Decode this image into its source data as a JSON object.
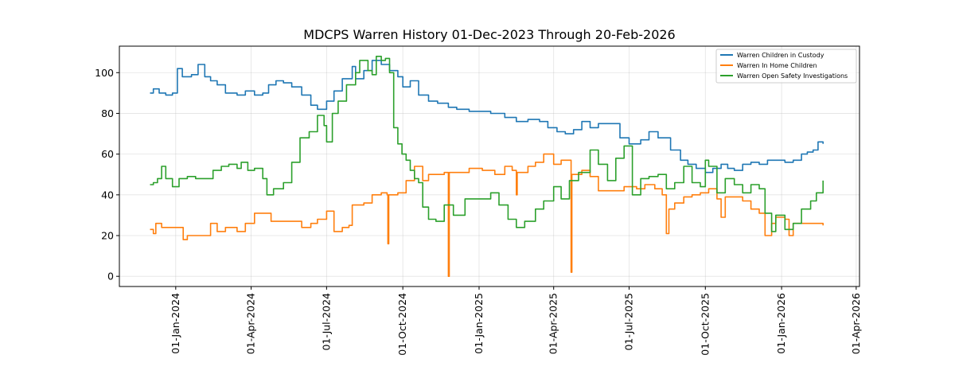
{
  "chart_data": {
    "type": "line",
    "title": "MDCPS Warren History 01-Dec-2023 Through 20-Feb-2026",
    "xlabel": "",
    "ylabel": "",
    "xlim": [
      "2023-10-25",
      "2026-04-05"
    ],
    "ylim": [
      -5,
      113
    ],
    "grid": true,
    "legend_position": "top-right",
    "x_ticks": [
      "2024-01-01",
      "2024-04-01",
      "2024-07-01",
      "2024-10-01",
      "2025-01-01",
      "2025-04-01",
      "2025-07-01",
      "2025-10-01",
      "2026-01-01",
      "2026-04-01"
    ],
    "x_tick_labels": [
      "01-Jan-2024",
      "01-Apr-2024",
      "01-Jul-2024",
      "01-Oct-2024",
      "01-Jan-2025",
      "01-Apr-2025",
      "01-Jul-2025",
      "01-Oct-2025",
      "01-Jan-2026",
      "01-Apr-2026"
    ],
    "y_ticks": [
      0,
      20,
      40,
      60,
      80,
      100
    ],
    "y_tick_labels": [
      "0",
      "20",
      "40",
      "60",
      "80",
      "100"
    ],
    "series": [
      {
        "name": "Warren Children in Custody",
        "color": "#1f77b4",
        "points": [
          [
            "2023-12-01",
            90
          ],
          [
            "2023-12-05",
            92
          ],
          [
            "2023-12-12",
            90
          ],
          [
            "2023-12-20",
            89
          ],
          [
            "2023-12-28",
            90
          ],
          [
            "2024-01-03",
            102
          ],
          [
            "2024-01-09",
            98
          ],
          [
            "2024-01-20",
            99
          ],
          [
            "2024-01-28",
            104
          ],
          [
            "2024-02-05",
            98
          ],
          [
            "2024-02-12",
            96
          ],
          [
            "2024-02-20",
            94
          ],
          [
            "2024-03-01",
            90
          ],
          [
            "2024-03-15",
            89
          ],
          [
            "2024-03-25",
            91
          ],
          [
            "2024-04-05",
            89
          ],
          [
            "2024-04-15",
            90
          ],
          [
            "2024-04-22",
            94
          ],
          [
            "2024-05-01",
            96
          ],
          [
            "2024-05-10",
            95
          ],
          [
            "2024-05-20",
            93
          ],
          [
            "2024-06-01",
            89
          ],
          [
            "2024-06-12",
            84
          ],
          [
            "2024-06-20",
            82
          ],
          [
            "2024-07-01",
            86
          ],
          [
            "2024-07-10",
            91
          ],
          [
            "2024-07-20",
            97
          ],
          [
            "2024-08-01",
            103
          ],
          [
            "2024-08-05",
            97
          ],
          [
            "2024-08-15",
            101
          ],
          [
            "2024-08-25",
            106
          ],
          [
            "2024-09-05",
            104
          ],
          [
            "2024-09-15",
            101
          ],
          [
            "2024-09-25",
            98
          ],
          [
            "2024-10-01",
            93
          ],
          [
            "2024-10-10",
            96
          ],
          [
            "2024-10-20",
            89
          ],
          [
            "2024-11-01",
            86
          ],
          [
            "2024-11-12",
            85
          ],
          [
            "2024-11-25",
            83
          ],
          [
            "2024-12-05",
            82
          ],
          [
            "2024-12-20",
            81
          ],
          [
            "2025-01-05",
            81
          ],
          [
            "2025-01-15",
            80
          ],
          [
            "2025-02-01",
            78
          ],
          [
            "2025-02-15",
            76
          ],
          [
            "2025-03-01",
            77
          ],
          [
            "2025-03-15",
            76
          ],
          [
            "2025-03-25",
            73
          ],
          [
            "2025-04-05",
            71
          ],
          [
            "2025-04-15",
            70
          ],
          [
            "2025-04-25",
            72
          ],
          [
            "2025-05-05",
            76
          ],
          [
            "2025-05-15",
            73
          ],
          [
            "2025-05-25",
            75
          ],
          [
            "2025-06-10",
            75
          ],
          [
            "2025-06-20",
            68
          ],
          [
            "2025-07-01",
            65
          ],
          [
            "2025-07-15",
            67
          ],
          [
            "2025-07-25",
            71
          ],
          [
            "2025-08-05",
            68
          ],
          [
            "2025-08-20",
            62
          ],
          [
            "2025-09-01",
            57
          ],
          [
            "2025-09-10",
            55
          ],
          [
            "2025-09-20",
            53
          ],
          [
            "2025-10-01",
            51
          ],
          [
            "2025-10-10",
            53
          ],
          [
            "2025-10-20",
            55
          ],
          [
            "2025-10-28",
            53
          ],
          [
            "2025-11-05",
            52
          ],
          [
            "2025-11-15",
            55
          ],
          [
            "2025-11-25",
            56
          ],
          [
            "2025-12-05",
            55
          ],
          [
            "2025-12-15",
            57
          ],
          [
            "2025-12-25",
            57
          ],
          [
            "2026-01-05",
            56
          ],
          [
            "2026-01-15",
            57
          ],
          [
            "2026-01-25",
            60
          ],
          [
            "2026-02-01",
            61
          ],
          [
            "2026-02-08",
            62
          ],
          [
            "2026-02-14",
            66
          ],
          [
            "2026-02-20",
            65
          ]
        ]
      },
      {
        "name": "Warren In Home Children",
        "color": "#ff7f0e",
        "points": [
          [
            "2023-12-01",
            23
          ],
          [
            "2023-12-05",
            21
          ],
          [
            "2023-12-08",
            26
          ],
          [
            "2023-12-15",
            24
          ],
          [
            "2023-12-25",
            24
          ],
          [
            "2024-01-05",
            24
          ],
          [
            "2024-01-10",
            18
          ],
          [
            "2024-01-15",
            20
          ],
          [
            "2024-01-25",
            20
          ],
          [
            "2024-02-05",
            20
          ],
          [
            "2024-02-12",
            26
          ],
          [
            "2024-02-20",
            22
          ],
          [
            "2024-03-01",
            24
          ],
          [
            "2024-03-15",
            22
          ],
          [
            "2024-03-25",
            26
          ],
          [
            "2024-04-05",
            31
          ],
          [
            "2024-04-15",
            31
          ],
          [
            "2024-04-25",
            27
          ],
          [
            "2024-05-10",
            27
          ],
          [
            "2024-05-25",
            27
          ],
          [
            "2024-06-01",
            24
          ],
          [
            "2024-06-12",
            26
          ],
          [
            "2024-06-20",
            28
          ],
          [
            "2024-07-01",
            32
          ],
          [
            "2024-07-10",
            22
          ],
          [
            "2024-07-20",
            24
          ],
          [
            "2024-07-28",
            25
          ],
          [
            "2024-08-01",
            35
          ],
          [
            "2024-08-15",
            36
          ],
          [
            "2024-08-25",
            40
          ],
          [
            "2024-09-05",
            41
          ],
          [
            "2024-09-12",
            40
          ],
          [
            "2024-09-13",
            16
          ],
          [
            "2024-09-14",
            40
          ],
          [
            "2024-09-25",
            41
          ],
          [
            "2024-10-05",
            47
          ],
          [
            "2024-10-15",
            54
          ],
          [
            "2024-10-25",
            47
          ],
          [
            "2024-11-01",
            50
          ],
          [
            "2024-11-20",
            51
          ],
          [
            "2024-11-25",
            0
          ],
          [
            "2024-11-26",
            51
          ],
          [
            "2024-12-10",
            51
          ],
          [
            "2024-12-20",
            53
          ],
          [
            "2025-01-05",
            52
          ],
          [
            "2025-01-20",
            50
          ],
          [
            "2025-02-01",
            54
          ],
          [
            "2025-02-10",
            52
          ],
          [
            "2025-02-15",
            40
          ],
          [
            "2025-02-16",
            51
          ],
          [
            "2025-03-01",
            54
          ],
          [
            "2025-03-10",
            56
          ],
          [
            "2025-03-20",
            60
          ],
          [
            "2025-04-01",
            55
          ],
          [
            "2025-04-10",
            57
          ],
          [
            "2025-04-20",
            57
          ],
          [
            "2025-04-22",
            2
          ],
          [
            "2025-04-23",
            50
          ],
          [
            "2025-05-05",
            52
          ],
          [
            "2025-05-15",
            49
          ],
          [
            "2025-05-25",
            42
          ],
          [
            "2025-06-10",
            42
          ],
          [
            "2025-06-25",
            44
          ],
          [
            "2025-07-10",
            43
          ],
          [
            "2025-07-20",
            45
          ],
          [
            "2025-08-01",
            43
          ],
          [
            "2025-08-10",
            40
          ],
          [
            "2025-08-15",
            21
          ],
          [
            "2025-08-18",
            33
          ],
          [
            "2025-08-25",
            36
          ],
          [
            "2025-09-05",
            39
          ],
          [
            "2025-09-15",
            40
          ],
          [
            "2025-09-25",
            41
          ],
          [
            "2025-10-05",
            43
          ],
          [
            "2025-10-15",
            38
          ],
          [
            "2025-10-20",
            29
          ],
          [
            "2025-10-25",
            39
          ],
          [
            "2025-11-05",
            39
          ],
          [
            "2025-11-15",
            37
          ],
          [
            "2025-11-25",
            33
          ],
          [
            "2025-12-05",
            31
          ],
          [
            "2025-12-12",
            20
          ],
          [
            "2025-12-20",
            26
          ],
          [
            "2025-12-25",
            29
          ],
          [
            "2026-01-05",
            28
          ],
          [
            "2026-01-10",
            20
          ],
          [
            "2026-01-15",
            26
          ],
          [
            "2026-01-25",
            26
          ],
          [
            "2026-02-05",
            26
          ],
          [
            "2026-02-20",
            25
          ]
        ]
      },
      {
        "name": "Warren Open Safety Investigations",
        "color": "#2ca02c",
        "points": [
          [
            "2023-12-01",
            45
          ],
          [
            "2023-12-05",
            46
          ],
          [
            "2023-12-10",
            48
          ],
          [
            "2023-12-15",
            54
          ],
          [
            "2023-12-20",
            48
          ],
          [
            "2023-12-28",
            44
          ],
          [
            "2024-01-05",
            48
          ],
          [
            "2024-01-15",
            49
          ],
          [
            "2024-01-25",
            48
          ],
          [
            "2024-02-05",
            48
          ],
          [
            "2024-02-15",
            52
          ],
          [
            "2024-02-25",
            54
          ],
          [
            "2024-03-05",
            55
          ],
          [
            "2024-03-15",
            53
          ],
          [
            "2024-03-20",
            56
          ],
          [
            "2024-03-28",
            52
          ],
          [
            "2024-04-05",
            53
          ],
          [
            "2024-04-15",
            48
          ],
          [
            "2024-04-20",
            40
          ],
          [
            "2024-04-28",
            43
          ],
          [
            "2024-05-10",
            46
          ],
          [
            "2024-05-20",
            56
          ],
          [
            "2024-05-30",
            68
          ],
          [
            "2024-06-10",
            71
          ],
          [
            "2024-06-20",
            79
          ],
          [
            "2024-06-28",
            74
          ],
          [
            "2024-07-01",
            66
          ],
          [
            "2024-07-08",
            80
          ],
          [
            "2024-07-15",
            86
          ],
          [
            "2024-07-25",
            94
          ],
          [
            "2024-08-05",
            100
          ],
          [
            "2024-08-10",
            106
          ],
          [
            "2024-08-20",
            101
          ],
          [
            "2024-08-25",
            99
          ],
          [
            "2024-08-30",
            108
          ],
          [
            "2024-09-05",
            106
          ],
          [
            "2024-09-10",
            107
          ],
          [
            "2024-09-15",
            100
          ],
          [
            "2024-09-20",
            73
          ],
          [
            "2024-09-25",
            65
          ],
          [
            "2024-09-30",
            60
          ],
          [
            "2024-10-05",
            57
          ],
          [
            "2024-10-10",
            52
          ],
          [
            "2024-10-15",
            48
          ],
          [
            "2024-10-20",
            46
          ],
          [
            "2024-10-25",
            34
          ],
          [
            "2024-11-01",
            28
          ],
          [
            "2024-11-10",
            27
          ],
          [
            "2024-11-20",
            35
          ],
          [
            "2024-12-01",
            30
          ],
          [
            "2024-12-15",
            38
          ],
          [
            "2025-01-01",
            38
          ],
          [
            "2025-01-15",
            41
          ],
          [
            "2025-01-25",
            35
          ],
          [
            "2025-02-05",
            28
          ],
          [
            "2025-02-15",
            24
          ],
          [
            "2025-02-25",
            27
          ],
          [
            "2025-03-10",
            33
          ],
          [
            "2025-03-20",
            37
          ],
          [
            "2025-04-01",
            44
          ],
          [
            "2025-04-10",
            38
          ],
          [
            "2025-04-20",
            47
          ],
          [
            "2025-05-01",
            51
          ],
          [
            "2025-05-15",
            62
          ],
          [
            "2025-05-25",
            55
          ],
          [
            "2025-06-05",
            47
          ],
          [
            "2025-06-15",
            58
          ],
          [
            "2025-06-25",
            64
          ],
          [
            "2025-07-05",
            40
          ],
          [
            "2025-07-15",
            48
          ],
          [
            "2025-07-25",
            49
          ],
          [
            "2025-08-05",
            50
          ],
          [
            "2025-08-15",
            43
          ],
          [
            "2025-08-25",
            46
          ],
          [
            "2025-09-05",
            54
          ],
          [
            "2025-09-15",
            46
          ],
          [
            "2025-09-25",
            44
          ],
          [
            "2025-10-01",
            57
          ],
          [
            "2025-10-05",
            54
          ],
          [
            "2025-10-15",
            41
          ],
          [
            "2025-10-25",
            48
          ],
          [
            "2025-11-05",
            45
          ],
          [
            "2025-11-15",
            41
          ],
          [
            "2025-11-25",
            45
          ],
          [
            "2025-12-05",
            43
          ],
          [
            "2025-12-12",
            31
          ],
          [
            "2025-12-20",
            22
          ],
          [
            "2025-12-25",
            30
          ],
          [
            "2026-01-05",
            23
          ],
          [
            "2026-01-15",
            26
          ],
          [
            "2026-01-25",
            33
          ],
          [
            "2026-02-05",
            37
          ],
          [
            "2026-02-12",
            41
          ],
          [
            "2026-02-20",
            47
          ]
        ]
      }
    ]
  }
}
